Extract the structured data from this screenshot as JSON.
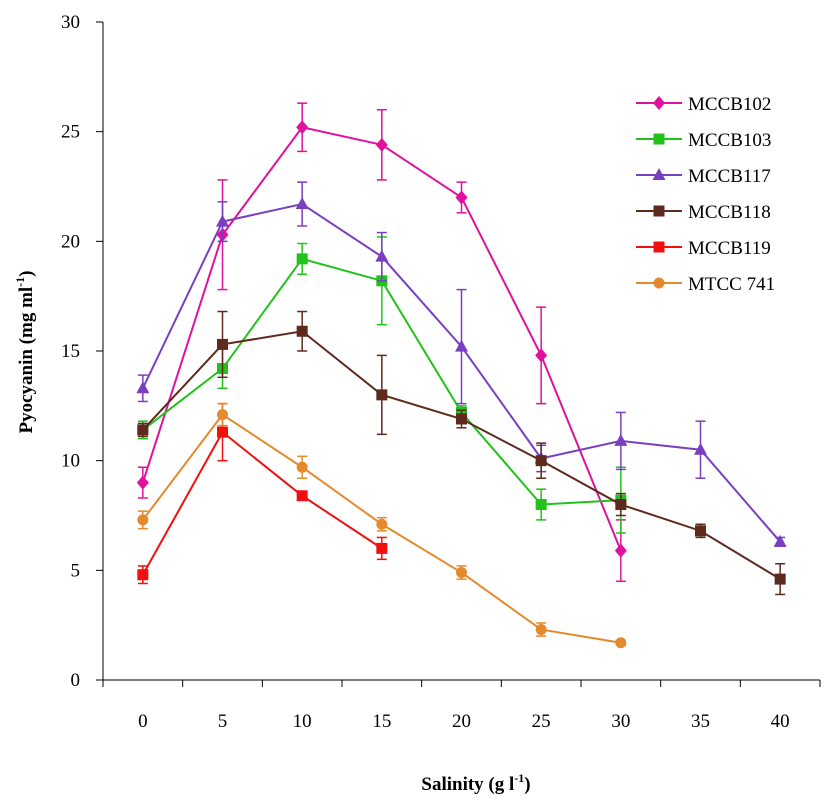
{
  "chart_data": {
    "type": "line",
    "title": "",
    "xlabel": "Salinity (g l",
    "xlabel_sup": "-1",
    "xlabel_tail": ")",
    "ylabel": "Pyocyanin (mg  ml",
    "ylabel_sup": "-1",
    "ylabel_tail": ")",
    "xlim": [
      -2.5,
      42.5
    ],
    "ylim": [
      0,
      30
    ],
    "xticks": [
      "0",
      "5",
      "10",
      "15",
      "20",
      "25",
      "30",
      "35",
      "40"
    ],
    "xtick_values": [
      0,
      5,
      10,
      15,
      20,
      25,
      30,
      35,
      40
    ],
    "yticks": [
      "0",
      "5",
      "10",
      "15",
      "20",
      "25",
      "30"
    ],
    "ytick_values": [
      0,
      5,
      10,
      15,
      20,
      25,
      30
    ],
    "grid": false,
    "legend_position": "top-right",
    "series": [
      {
        "name": "MCCB102",
        "color": "#E0119C",
        "marker": "diamond",
        "points": [
          {
            "x": 0,
            "y": 9.0,
            "err": 0.7
          },
          {
            "x": 5,
            "y": 20.3,
            "err": 2.5
          },
          {
            "x": 10,
            "y": 25.2,
            "err": 1.1
          },
          {
            "x": 15,
            "y": 24.4,
            "err": 1.6
          },
          {
            "x": 20,
            "y": 22.0,
            "err": 0.7
          },
          {
            "x": 25,
            "y": 14.8,
            "err": 2.2
          },
          {
            "x": 30,
            "y": 5.9,
            "err": 1.4
          }
        ]
      },
      {
        "name": "MCCB103",
        "color": "#21C21B",
        "marker": "square",
        "points": [
          {
            "x": 0,
            "y": 11.4,
            "err": 0.4
          },
          {
            "x": 5,
            "y": 14.2,
            "err": 0.9
          },
          {
            "x": 10,
            "y": 19.2,
            "err": 0.7
          },
          {
            "x": 15,
            "y": 18.2,
            "err": 2.0
          },
          {
            "x": 20,
            "y": 12.2,
            "err": 0.3
          },
          {
            "x": 25,
            "y": 8.0,
            "err": 0.7
          },
          {
            "x": 30,
            "y": 8.2,
            "err": 1.5
          }
        ]
      },
      {
        "name": "MCCB117",
        "color": "#7A3FC0",
        "marker": "triangle",
        "points": [
          {
            "x": 0,
            "y": 13.3,
            "err": 0.6
          },
          {
            "x": 5,
            "y": 20.9,
            "err": 0.9
          },
          {
            "x": 10,
            "y": 21.7,
            "err": 1.0
          },
          {
            "x": 15,
            "y": 19.3,
            "err": 1.1
          },
          {
            "x": 20,
            "y": 15.2,
            "err": 2.6
          },
          {
            "x": 25,
            "y": 10.1,
            "err": 0.6
          },
          {
            "x": 30,
            "y": 10.9,
            "err": 1.3
          },
          {
            "x": 35,
            "y": 10.5,
            "err": 1.3
          },
          {
            "x": 40,
            "y": 6.3,
            "err": 0.2
          }
        ]
      },
      {
        "name": "MCCB118",
        "color": "#5E2A1E",
        "marker": "square",
        "points": [
          {
            "x": 0,
            "y": 11.4,
            "err": 0.3
          },
          {
            "x": 5,
            "y": 15.3,
            "err": 1.5
          },
          {
            "x": 10,
            "y": 15.9,
            "err": 0.9
          },
          {
            "x": 15,
            "y": 13.0,
            "err": 1.8
          },
          {
            "x": 20,
            "y": 11.9,
            "err": 0.4
          },
          {
            "x": 25,
            "y": 10.0,
            "err": 0.8
          },
          {
            "x": 30,
            "y": 8.0,
            "err": 0.5
          },
          {
            "x": 35,
            "y": 6.8,
            "err": 0.3
          },
          {
            "x": 40,
            "y": 4.6,
            "err": 0.7
          }
        ]
      },
      {
        "name": "MCCB119",
        "color": "#F0100E",
        "marker": "square",
        "points": [
          {
            "x": 0,
            "y": 4.8,
            "err": 0.4
          },
          {
            "x": 5,
            "y": 11.3,
            "err": 1.3
          },
          {
            "x": 10,
            "y": 8.4,
            "err": 0.2
          },
          {
            "x": 15,
            "y": 6.0,
            "err": 0.5
          }
        ]
      },
      {
        "name": "MTCC 741",
        "color": "#E58A2C",
        "marker": "circle",
        "points": [
          {
            "x": 0,
            "y": 7.3,
            "err": 0.4
          },
          {
            "x": 5,
            "y": 12.1,
            "err": 0.5
          },
          {
            "x": 10,
            "y": 9.7,
            "err": 0.5
          },
          {
            "x": 15,
            "y": 7.1,
            "err": 0.3
          },
          {
            "x": 20,
            "y": 4.9,
            "err": 0.3
          },
          {
            "x": 25,
            "y": 2.3,
            "err": 0.3
          },
          {
            "x": 30,
            "y": 1.7,
            "err": 0.1
          }
        ]
      }
    ]
  }
}
